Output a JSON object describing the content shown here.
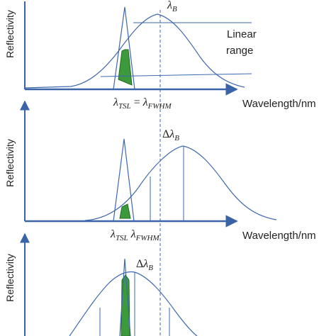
{
  "colors": {
    "axis": "#3a64a8",
    "curve": "#3e68ad",
    "dashed": "#3e68ad",
    "fill": "#3c9a3c",
    "fill_stroke": "#1f6e1f",
    "text": "#222222"
  },
  "panels": [
    {
      "y_axis_label": "Reflectivity",
      "x_axis_label": "Wavelength/nm",
      "peak_label": {
        "main": "λ",
        "sub": "B"
      },
      "annotation_lines": [
        "Linear",
        "range"
      ],
      "bottom_label": [
        {
          "main": "λ",
          "sub": "TSL"
        },
        {
          "op": " = "
        },
        {
          "main": "λ",
          "sub": "FWHM"
        }
      ]
    },
    {
      "y_axis_label": "Reflectivity",
      "x_axis_label": "Wavelength/nm",
      "peak_label": {
        "pre": "Δ",
        "main": "λ",
        "sub": "B"
      },
      "bottom_label": [
        {
          "main": "λ",
          "sub": "TSL"
        },
        {
          "op": " "
        },
        {
          "main": "λ",
          "sub": "FWHM"
        }
      ]
    },
    {
      "y_axis_label": "Reflectivity",
      "peak_label": {
        "pre": "Δ",
        "main": "λ",
        "sub": "B"
      }
    }
  ]
}
